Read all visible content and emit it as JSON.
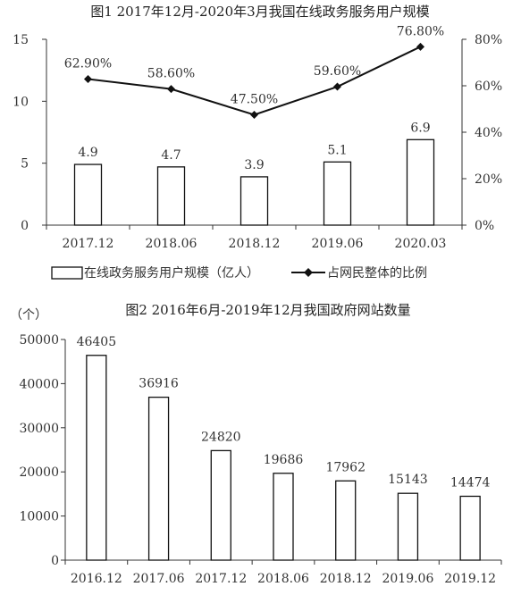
{
  "chart_data": [
    {
      "type": "bar",
      "title": "图1 2017年12月-2020年3月我国在线政务服务用户规模",
      "categories": [
        "2017.12",
        "2018.06",
        "2018.12",
        "2019.06",
        "2020.03"
      ],
      "series": [
        {
          "name": "在线政务服务用户规模（亿人）",
          "type": "bar",
          "axis": "left",
          "values": [
            4.9,
            4.7,
            3.9,
            5.1,
            6.9
          ],
          "labels": [
            "4.9",
            "4.7",
            "3.9",
            "5.1",
            "6.9"
          ]
        },
        {
          "name": "占网民整体的比例",
          "type": "line",
          "axis": "right",
          "values": [
            62.9,
            58.6,
            47.5,
            59.6,
            76.8
          ],
          "labels": [
            "62.90%",
            "58.60%",
            "47.50%",
            "59.60%",
            "76.80%"
          ]
        }
      ],
      "y_left": {
        "min": 0,
        "max": 15,
        "ticks": [
          "0",
          "5",
          "10",
          "15"
        ]
      },
      "y_right": {
        "min": 0,
        "max": 80,
        "ticks": [
          "0%",
          "20%",
          "40%",
          "60%",
          "80%"
        ]
      },
      "legend_position": "bottom",
      "grid": false
    },
    {
      "type": "bar",
      "title": "图2 2016年6月-2019年12月我国政府网站数量",
      "ylabel": "（个）",
      "categories": [
        "2016.12",
        "2017.06",
        "2017.12",
        "2018.06",
        "2018.12",
        "2019.06",
        "2019.12"
      ],
      "values": [
        46405,
        36916,
        24820,
        19686,
        17962,
        15143,
        14474
      ],
      "labels": [
        "46405",
        "36916",
        "24820",
        "19686",
        "17962",
        "15143",
        "14474"
      ],
      "y": {
        "min": 0,
        "max": 50000,
        "ticks": [
          "0",
          "10000",
          "20000",
          "30000",
          "40000",
          "50000"
        ]
      },
      "grid": false
    }
  ]
}
